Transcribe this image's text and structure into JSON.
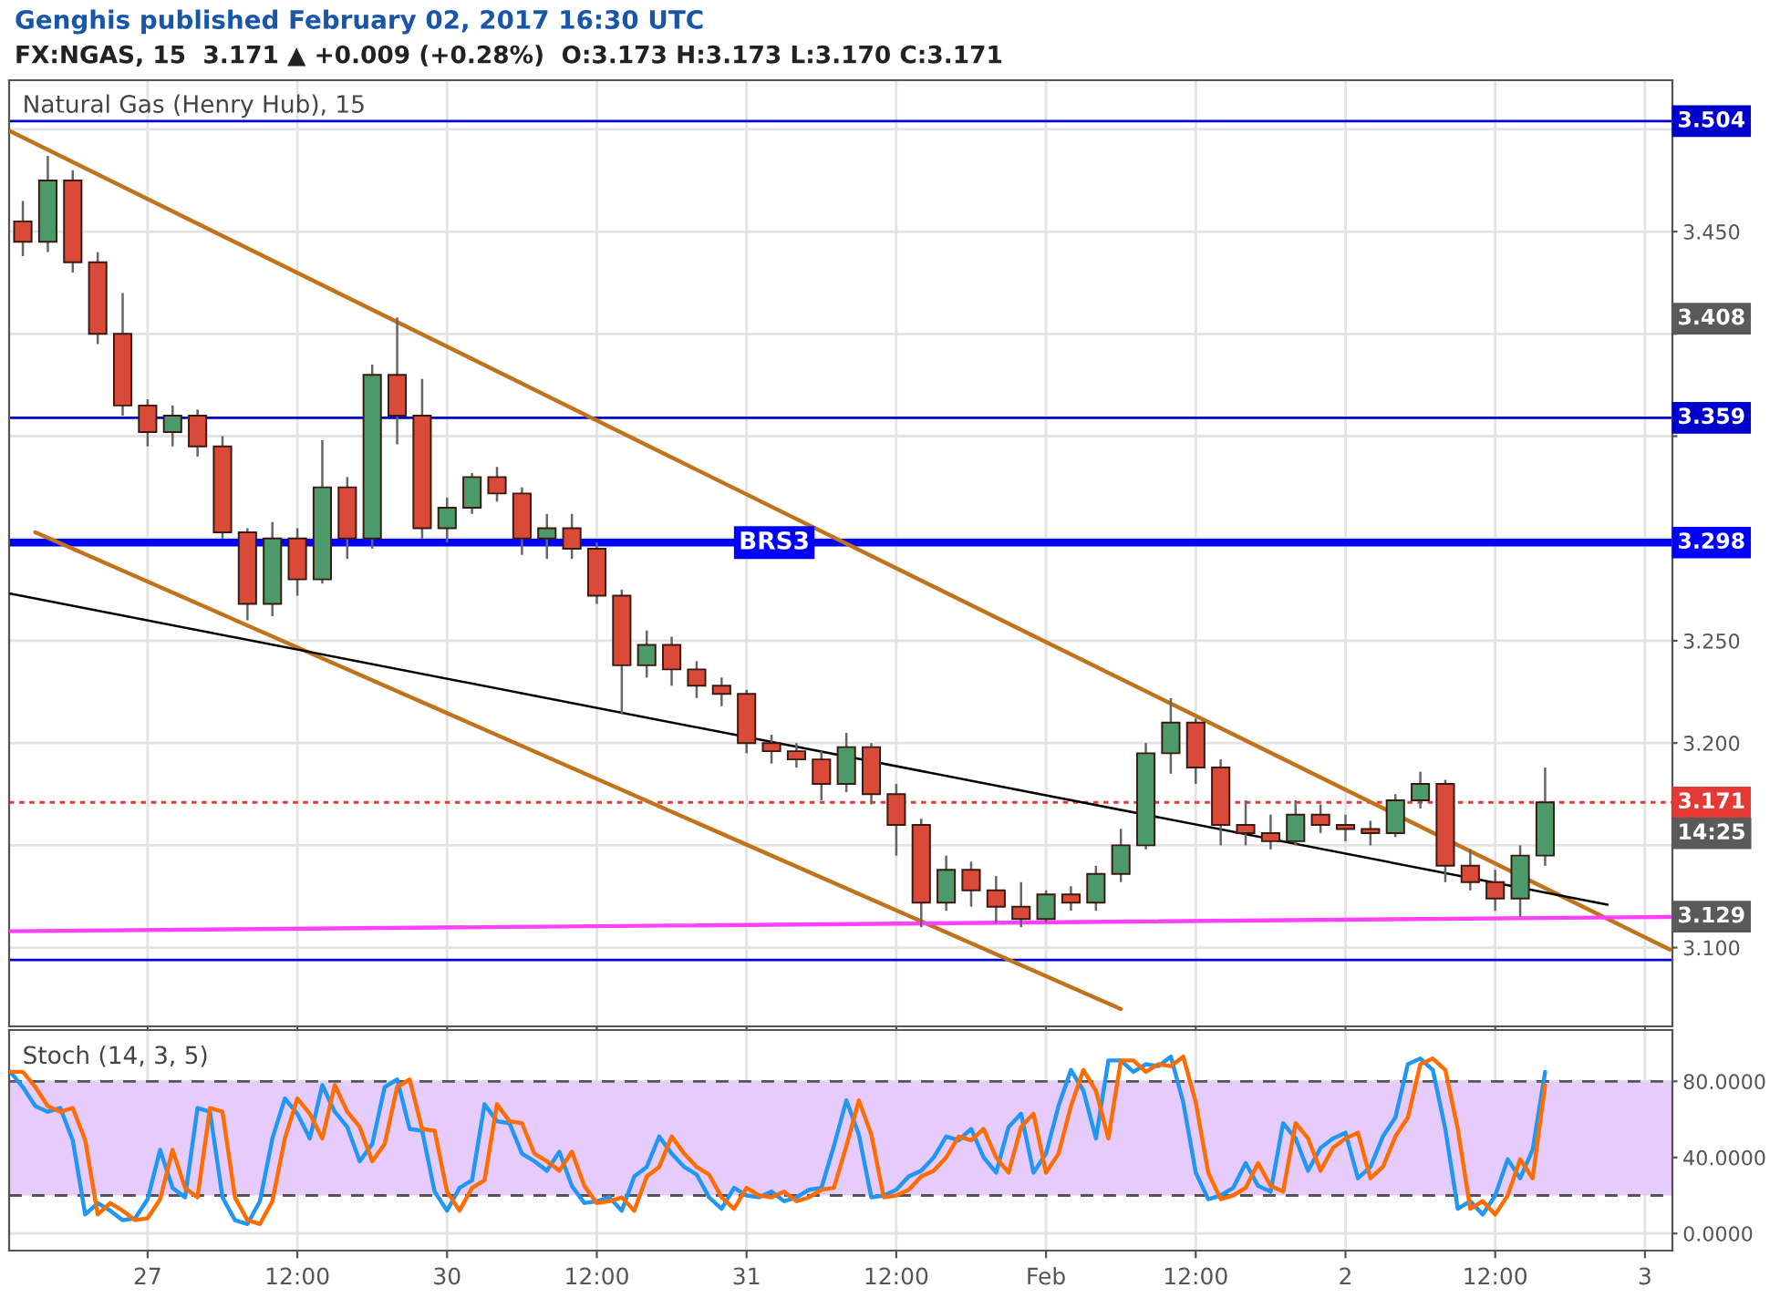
{
  "chart_data": [
    {
      "type": "candlestick",
      "title": "Genghis published February 02, 2017 16:30 UTC",
      "subtitle": "FX:NGAS, 15  3.171 ▲ +0.009 (+0.28%)  O:3.173 H:3.173 L:3.170 C:3.171",
      "categories": [
        null,
        null,
        null,
        null,
        null,
        null,
        null,
        null,
        null,
        null,
        null,
        null,
        null,
        null,
        null,
        null,
        null,
        null,
        null,
        null,
        null,
        null,
        null,
        null,
        null,
        null,
        null,
        null,
        null,
        null,
        null,
        null,
        null,
        null,
        null,
        null,
        null,
        null,
        null,
        null,
        null,
        null,
        null,
        null,
        null,
        null,
        null,
        null,
        null,
        null,
        null,
        null,
        null,
        null,
        null,
        null,
        null,
        null,
        null,
        null,
        null,
        null,
        null,
        null,
        null,
        null,
        null,
        null,
        null,
        null,
        null,
        null,
        null,
        null,
        null,
        null,
        null,
        null,
        null,
        null,
        null,
        null,
        null,
        null,
        null,
        null,
        null,
        null,
        null,
        null,
        null,
        null,
        null,
        null,
        null,
        null,
        null,
        null,
        null,
        null,
        null,
        null,
        null,
        null,
        null,
        null,
        null,
        null,
        null,
        null,
        null,
        null,
        null,
        null,
        null,
        null,
        null,
        null,
        null,
        null,
        null,
        null,
        null,
        null,
        null,
        null,
        null,
        null,
        null,
        null,
        null,
        null,
        null,
        null
      ],
      "ohlc": [
        null,
        [
          3.455,
          3.465,
          3.438,
          3.445
        ],
        null,
        [
          3.445,
          3.487,
          3.44,
          3.475
        ],
        null,
        [
          3.475,
          3.48,
          3.43,
          3.435
        ],
        null,
        [
          3.435,
          3.44,
          3.395,
          3.4
        ],
        null,
        [
          3.4,
          3.42,
          3.36,
          3.365
        ],
        null,
        [
          3.365,
          3.368,
          3.345,
          3.352
        ],
        null,
        [
          3.352,
          3.365,
          3.345,
          3.36
        ],
        null,
        [
          3.36,
          3.363,
          3.34,
          3.345
        ],
        null,
        [
          3.345,
          3.35,
          3.3,
          3.303
        ],
        null,
        [
          3.303,
          3.305,
          3.26,
          3.268
        ],
        null,
        [
          3.268,
          3.308,
          3.262,
          3.3
        ],
        null,
        [
          3.3,
          3.305,
          3.272,
          3.28
        ],
        null,
        [
          3.28,
          3.348,
          3.278,
          3.325
        ],
        null,
        [
          3.325,
          3.33,
          3.29,
          3.3
        ],
        null,
        [
          3.3,
          3.385,
          3.295,
          3.38
        ],
        null,
        [
          3.38,
          3.408,
          3.346,
          3.36
        ],
        null,
        [
          3.36,
          3.378,
          3.3,
          3.305
        ],
        null,
        [
          3.305,
          3.32,
          3.298,
          3.315
        ],
        null,
        [
          3.315,
          3.332,
          3.312,
          3.33
        ],
        null,
        [
          3.33,
          3.335,
          3.318,
          3.322
        ],
        null,
        [
          3.322,
          3.325,
          3.292,
          3.3
        ],
        null,
        [
          3.3,
          3.312,
          3.29,
          3.305
        ],
        null,
        [
          3.305,
          3.312,
          3.29,
          3.295
        ],
        null,
        [
          3.295,
          3.298,
          3.268,
          3.272
        ],
        null,
        [
          3.272,
          3.275,
          3.214,
          3.238
        ],
        null,
        [
          3.238,
          3.255,
          3.232,
          3.248
        ],
        null,
        [
          3.248,
          3.252,
          3.228,
          3.236
        ],
        null,
        [
          3.236,
          3.24,
          3.222,
          3.228
        ],
        null,
        [
          3.228,
          3.232,
          3.218,
          3.224
        ],
        null,
        [
          3.224,
          3.226,
          3.195,
          3.2
        ],
        null,
        [
          3.2,
          3.204,
          3.19,
          3.196
        ],
        null,
        [
          3.196,
          3.2,
          3.188,
          3.192
        ],
        null,
        [
          3.192,
          3.196,
          3.172,
          3.18
        ],
        null,
        [
          3.18,
          3.205,
          3.176,
          3.198
        ],
        null,
        [
          3.198,
          3.2,
          3.17,
          3.175
        ],
        null,
        [
          3.175,
          3.18,
          3.145,
          3.16
        ],
        null,
        [
          3.16,
          3.163,
          3.11,
          3.122
        ],
        null,
        [
          3.122,
          3.145,
          3.118,
          3.138
        ],
        null,
        [
          3.138,
          3.142,
          3.12,
          3.128
        ],
        null,
        [
          3.128,
          3.135,
          3.112,
          3.12
        ],
        null,
        [
          3.12,
          3.132,
          3.11,
          3.114
        ],
        null,
        [
          3.114,
          3.128,
          3.112,
          3.126
        ],
        null,
        [
          3.126,
          3.13,
          3.118,
          3.122
        ],
        null,
        [
          3.122,
          3.14,
          3.118,
          3.136
        ],
        null,
        [
          3.136,
          3.158,
          3.132,
          3.15
        ],
        null,
        [
          3.15,
          3.2,
          3.148,
          3.195
        ],
        null,
        [
          3.195,
          3.222,
          3.185,
          3.21
        ],
        null,
        [
          3.21,
          3.212,
          3.18,
          3.188
        ],
        null,
        [
          3.188,
          3.192,
          3.15,
          3.16
        ],
        null,
        [
          3.16,
          3.172,
          3.15,
          3.156
        ],
        null,
        [
          3.156,
          3.165,
          3.148,
          3.152
        ],
        null,
        [
          3.152,
          3.172,
          3.15,
          3.165
        ],
        null,
        [
          3.165,
          3.17,
          3.156,
          3.16
        ],
        null,
        [
          3.16,
          3.165,
          3.152,
          3.158
        ],
        null,
        [
          3.158,
          3.162,
          3.15,
          3.156
        ],
        null,
        [
          3.156,
          3.175,
          3.154,
          3.172
        ],
        null,
        [
          3.172,
          3.186,
          3.168,
          3.18
        ],
        null,
        [
          3.18,
          3.182,
          3.132,
          3.14
        ],
        null,
        [
          3.14,
          3.148,
          3.128,
          3.132
        ],
        null,
        [
          3.132,
          3.138,
          3.118,
          3.124
        ],
        null,
        [
          3.124,
          3.15,
          3.115,
          3.145
        ],
        null,
        [
          3.145,
          3.188,
          3.14,
          3.171
        ],
        null,
        null,
        null,
        null,
        null,
        null,
        null,
        null,
        null,
        null
      ],
      "colors": [
        null,
        "#d94a38",
        null,
        "#4c9a6a",
        null,
        "#d94a38",
        null,
        "#d94a38",
        null,
        "#d94a38",
        null,
        "#d94a38",
        null,
        "#4c9a6a",
        null,
        "#d94a38",
        null,
        "#d94a38",
        null,
        "#d94a38",
        null,
        "#4c9a6a",
        null,
        "#d94a38",
        null,
        "#4c9a6a",
        null,
        "#d94a38",
        null,
        "#4c9a6a",
        null,
        "#d94a38",
        null,
        "#d94a38",
        null,
        "#4c9a6a",
        null,
        "#4c9a6a",
        null,
        "#d94a38",
        null,
        "#d94a38",
        null,
        "#4c9a6a",
        null,
        "#d94a38",
        null,
        "#d94a38",
        null,
        "#d94a38",
        null,
        "#4c9a6a",
        null,
        "#d94a38",
        null,
        "#d94a38",
        null,
        "#d94a38",
        null,
        "#d94a38",
        null,
        "#d94a38",
        null,
        "#d94a38",
        null,
        "#d94a38",
        null,
        "#4c9a6a",
        null,
        "#d94a38",
        null,
        "#d94a38",
        null,
        "#d94a38",
        null,
        "#4c9a6a",
        null,
        "#d94a38",
        null,
        "#d94a38",
        null,
        "#d94a38",
        null,
        "#4c9a6a",
        null,
        "#d94a38",
        null,
        "#4c9a6a",
        null,
        "#4c9a6a",
        null,
        "#4c9a6a",
        null,
        "#4c9a6a",
        null,
        "#d94a38",
        null,
        "#d94a38",
        null,
        "#d94a38",
        null,
        "#d94a38",
        null,
        "#4c9a6a",
        null,
        "#d94a38",
        null,
        "#d94a38",
        null,
        "#d94a38",
        null,
        "#4c9a6a",
        null,
        "#4c9a6a",
        null,
        "#d94a38",
        null,
        "#d94a38",
        null,
        "#d94a38",
        null,
        "#4c9a6a",
        null,
        "#4c9a6a",
        null,
        null,
        null,
        null,
        null,
        null,
        null,
        null,
        null,
        null
      ],
      "series": [
        {
          "type": "line",
          "color": "#c2721b",
          "values": [
            3.499,
            null,
            null,
            null,
            null,
            null,
            null,
            null,
            null,
            null,
            null,
            null,
            null,
            null,
            null,
            null,
            null,
            null,
            null,
            null,
            null,
            null,
            null,
            null,
            null,
            null,
            null,
            null,
            null,
            null,
            null,
            null,
            null,
            null,
            null,
            null,
            null,
            null,
            null,
            null,
            null,
            null,
            null,
            null,
            null,
            null,
            null,
            null,
            null,
            null,
            null,
            null,
            null,
            null,
            null,
            null,
            null,
            null,
            null,
            null,
            null,
            null,
            null,
            null,
            null,
            null,
            null,
            null,
            null,
            null,
            null,
            null,
            null,
            null,
            null,
            null,
            null,
            null,
            null,
            null,
            null,
            null,
            null,
            null,
            null,
            null,
            null,
            null,
            null,
            null,
            null,
            null,
            null,
            null,
            null,
            null,
            null,
            null,
            null,
            null,
            null,
            null,
            null,
            null,
            null,
            null,
            null,
            null,
            null,
            null,
            null,
            null,
            null,
            null,
            null,
            null,
            null,
            null,
            null,
            null,
            null,
            null,
            null,
            null,
            null,
            null,
            null,
            null,
            null,
            null,
            null,
            null,
            null,
            3.099
          ]
        },
        {
          "type": "line",
          "color": "#c2721b",
          "values": [
            null,
            null,
            3.303,
            null,
            null,
            null,
            null,
            null,
            null,
            null,
            null,
            null,
            null,
            null,
            null,
            null,
            null,
            null,
            null,
            null,
            null,
            null,
            null,
            null,
            null,
            null,
            null,
            null,
            null,
            null,
            null,
            null,
            null,
            null,
            null,
            null,
            null,
            null,
            null,
            null,
            null,
            null,
            null,
            null,
            null,
            null,
            null,
            null,
            null,
            null,
            null,
            null,
            null,
            null,
            null,
            null,
            null,
            null,
            null,
            null,
            null,
            null,
            null,
            null,
            null,
            null,
            null,
            null,
            null,
            null,
            null,
            null,
            null,
            null,
            null,
            null,
            null,
            null,
            null,
            null,
            null,
            null,
            null,
            null,
            null,
            null,
            null,
            null,
            null,
            3.07,
            null,
            null,
            null,
            null,
            null,
            null,
            null,
            null,
            null,
            null,
            null,
            null,
            null,
            null,
            null,
            null,
            null,
            null,
            null,
            null,
            null,
            null,
            null,
            null,
            null,
            null,
            null,
            null,
            null,
            null,
            null,
            null,
            null,
            null,
            null,
            null,
            null,
            null,
            null,
            null,
            null,
            null,
            null,
            null
          ]
        },
        {
          "type": "line",
          "color": "#000000",
          "values": [
            3.273,
            null,
            null,
            null,
            null,
            null,
            null,
            null,
            null,
            null,
            null,
            null,
            null,
            null,
            null,
            null,
            null,
            null,
            null,
            null,
            null,
            null,
            null,
            null,
            null,
            null,
            null,
            null,
            null,
            null,
            null,
            null,
            null,
            null,
            null,
            null,
            null,
            null,
            null,
            null,
            null,
            null,
            null,
            null,
            null,
            null,
            null,
            null,
            null,
            null,
            null,
            null,
            null,
            null,
            null,
            null,
            null,
            null,
            null,
            null,
            null,
            null,
            null,
            null,
            null,
            null,
            null,
            null,
            null,
            null,
            null,
            null,
            null,
            null,
            null,
            null,
            null,
            null,
            null,
            null,
            null,
            null,
            null,
            null,
            null,
            null,
            null,
            null,
            null,
            null,
            null,
            null,
            null,
            null,
            null,
            null,
            null,
            null,
            null,
            null,
            null,
            null,
            null,
            null,
            null,
            null,
            null,
            null,
            null,
            null,
            null,
            null,
            null,
            null,
            null,
            null,
            null,
            null,
            null,
            null,
            null,
            null,
            null,
            null,
            null,
            null,
            null,
            null,
            3.121,
            null,
            null,
            null,
            null,
            null
          ]
        },
        {
          "type": "line",
          "color": "#ff40ff",
          "values": [
            3.108,
            null,
            null,
            null,
            null,
            null,
            null,
            null,
            null,
            null,
            null,
            null,
            null,
            null,
            null,
            null,
            null,
            null,
            null,
            null,
            null,
            null,
            null,
            null,
            null,
            null,
            null,
            null,
            null,
            null,
            null,
            null,
            null,
            null,
            null,
            null,
            null,
            null,
            null,
            null,
            null,
            null,
            null,
            null,
            null,
            null,
            null,
            null,
            null,
            null,
            null,
            null,
            null,
            null,
            null,
            null,
            null,
            null,
            null,
            null,
            null,
            null,
            null,
            null,
            null,
            null,
            null,
            null,
            null,
            null,
            null,
            null,
            null,
            null,
            null,
            null,
            null,
            null,
            null,
            null,
            null,
            null,
            null,
            null,
            null,
            null,
            null,
            null,
            null,
            null,
            null,
            null,
            null,
            null,
            null,
            null,
            null,
            null,
            null,
            null,
            null,
            null,
            null,
            null,
            null,
            null,
            null,
            null,
            null,
            null,
            null,
            null,
            null,
            null,
            null,
            null,
            null,
            null,
            null,
            null,
            null,
            null,
            null,
            null,
            null,
            null,
            null,
            null,
            null,
            null,
            null,
            null,
            null,
            3.115
          ]
        }
      ],
      "ref_lines": [
        {
          "axis": "y",
          "value": 3.504,
          "label": "3.504",
          "color": "#0000cc",
          "line_style": "solid"
        },
        {
          "axis": "y",
          "value": 3.359,
          "label": "3.359",
          "color": "#0000cc",
          "line_style": "solid"
        },
        {
          "axis": "y",
          "value": 3.298,
          "label": "3.298",
          "color": "#0000ff",
          "line_style": "solid"
        },
        {
          "axis": "y",
          "value": 3.171,
          "label": "3.171",
          "color": "#e53935",
          "line_style": "dotted"
        },
        {
          "axis": "y",
          "value": 3.094,
          "label": null,
          "color": "#0000cc",
          "line_style": "solid"
        }
      ],
      "annotations": [
        "Natural Gas (Henry Hub), 15",
        "3.408",
        "14:25",
        "3.129",
        {
          "text": "BRS3",
          "y": 3.298
        }
      ],
      "ylim": [
        3.0615,
        3.524
      ],
      "yticks": [
        {
          "value": 3.1,
          "label": "3.100"
        },
        {
          "value": 3.15,
          "label": null
        },
        {
          "value": 3.2,
          "label": "3.200"
        },
        {
          "value": 3.25,
          "label": "3.250"
        },
        {
          "value": 3.3,
          "label": null
        },
        {
          "value": 3.35,
          "label": null
        },
        {
          "value": 3.4,
          "label": null
        },
        {
          "value": 3.45,
          "label": "3.450"
        },
        {
          "value": 3.5,
          "label": null
        }
      ],
      "tick_labels": "y",
      "grid": true
    },
    {
      "type": "line",
      "title": "Stoch (14, 3, 5)",
      "categories": [
        null,
        null,
        null,
        null,
        null,
        null,
        null,
        null,
        null,
        null,
        null,
        "27",
        null,
        null,
        null,
        null,
        null,
        null,
        null,
        null,
        null,
        null,
        null,
        "12:00",
        null,
        null,
        null,
        null,
        null,
        null,
        null,
        null,
        null,
        null,
        null,
        "30",
        null,
        null,
        null,
        null,
        null,
        null,
        null,
        null,
        null,
        null,
        null,
        "12:00",
        null,
        null,
        null,
        null,
        null,
        null,
        null,
        null,
        null,
        null,
        null,
        "31",
        null,
        null,
        null,
        null,
        null,
        null,
        null,
        null,
        null,
        null,
        null,
        "12:00",
        null,
        null,
        null,
        null,
        null,
        null,
        null,
        null,
        null,
        null,
        null,
        "Feb",
        null,
        null,
        null,
        null,
        null,
        null,
        null,
        null,
        null,
        null,
        null,
        "12:00",
        null,
        null,
        null,
        null,
        null,
        null,
        null,
        null,
        null,
        null,
        null,
        "2",
        null,
        null,
        null,
        null,
        null,
        null,
        null,
        null,
        null,
        null,
        null,
        "12:00",
        null,
        null,
        null,
        null,
        null,
        null,
        null,
        null,
        null,
        null,
        null,
        "3",
        null,
        null
      ],
      "series": [
        {
          "color": "#2196f3",
          "values": [
            85,
            77,
            67,
            64,
            66,
            49,
            10,
            16,
            12,
            7,
            8,
            18,
            44,
            24,
            19,
            66,
            64,
            19,
            7,
            5,
            17,
            50,
            71,
            63,
            50,
            78,
            64,
            56,
            38,
            47,
            77,
            81,
            55,
            54,
            22,
            12,
            24,
            28,
            68,
            59,
            58,
            42,
            38,
            33,
            43,
            25,
            16,
            17,
            19,
            12,
            30,
            35,
            51,
            42,
            35,
            31,
            19,
            13,
            24,
            20,
            19,
            22,
            17,
            19,
            23,
            24,
            46,
            70,
            52,
            19,
            20,
            23,
            30,
            33,
            40,
            51,
            49,
            55,
            40,
            32,
            56,
            63,
            32,
            42,
            67,
            86,
            75,
            50,
            91,
            91,
            85,
            89,
            88,
            93,
            69,
            32,
            18,
            20,
            24,
            37,
            25,
            22,
            58,
            50,
            33,
            45,
            50,
            53,
            29,
            35,
            51,
            61,
            89,
            92,
            86,
            55,
            13,
            17,
            10,
            20,
            39,
            29,
            44,
            85,
            null,
            null,
            null,
            null,
            null,
            null,
            null,
            null,
            null,
            null
          ]
        },
        {
          "color": "#ff6d00",
          "values": [
            85,
            85,
            77,
            67,
            64,
            66,
            49,
            10,
            16,
            12,
            7,
            8,
            18,
            44,
            24,
            19,
            66,
            64,
            19,
            7,
            5,
            17,
            50,
            71,
            63,
            50,
            78,
            64,
            56,
            38,
            47,
            77,
            81,
            55,
            54,
            22,
            12,
            24,
            28,
            68,
            59,
            58,
            42,
            38,
            33,
            43,
            25,
            16,
            17,
            19,
            12,
            30,
            35,
            51,
            42,
            35,
            31,
            19,
            13,
            24,
            20,
            19,
            22,
            17,
            19,
            23,
            24,
            46,
            70,
            52,
            19,
            20,
            23,
            30,
            33,
            40,
            51,
            49,
            55,
            40,
            32,
            56,
            63,
            32,
            42,
            67,
            86,
            75,
            50,
            91,
            91,
            85,
            89,
            88,
            93,
            69,
            32,
            18,
            20,
            24,
            37,
            25,
            22,
            58,
            50,
            33,
            45,
            50,
            53,
            29,
            35,
            51,
            61,
            89,
            92,
            86,
            55,
            13,
            17,
            10,
            20,
            39,
            29,
            78,
            null,
            null,
            null,
            null,
            null,
            null,
            null,
            null,
            null,
            null
          ]
        }
      ],
      "ref_lines": [
        {
          "axis": "y",
          "value": 80,
          "color": "#555555",
          "line_style": "dashed"
        },
        {
          "axis": "y",
          "value": 20,
          "color": "#555555",
          "line_style": "dashed"
        }
      ],
      "bands": [
        {
          "axis": "y",
          "from": 20,
          "to": 80,
          "color": "#e6ccfc"
        }
      ],
      "ylim": [
        -9,
        107
      ],
      "yticks": [
        {
          "value": 0,
          "label": "0.0000"
        },
        {
          "value": 40,
          "label": "40.0000"
        },
        {
          "value": 80,
          "label": "80.0000"
        }
      ],
      "grid": true
    }
  ]
}
